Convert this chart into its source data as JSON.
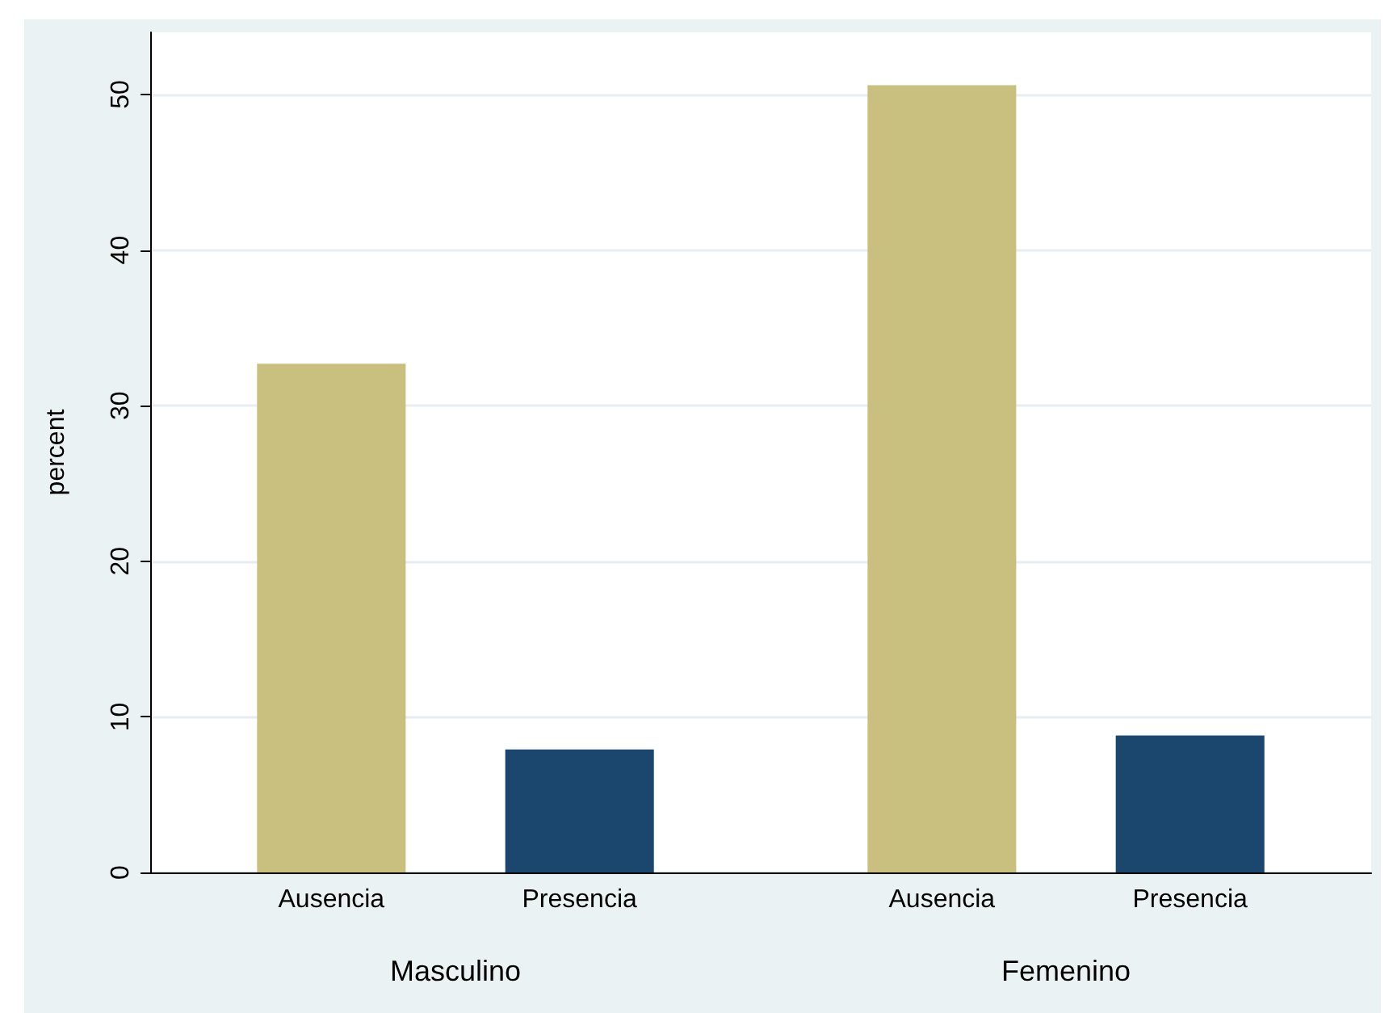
{
  "chart_data": {
    "type": "bar",
    "ylabel": "percent",
    "categories": [
      "Masculino",
      "Femenino"
    ],
    "series": [
      {
        "name": "Ausencia",
        "color": "#c9c07f",
        "values": [
          32.7,
          50.6
        ]
      },
      {
        "name": "Presencia",
        "color": "#1b466d",
        "values": [
          7.9,
          8.8
        ]
      }
    ],
    "ylim": [
      0,
      54
    ],
    "yticks": [
      0,
      10,
      20,
      30,
      40,
      50
    ],
    "grid": "y",
    "legend": false
  }
}
